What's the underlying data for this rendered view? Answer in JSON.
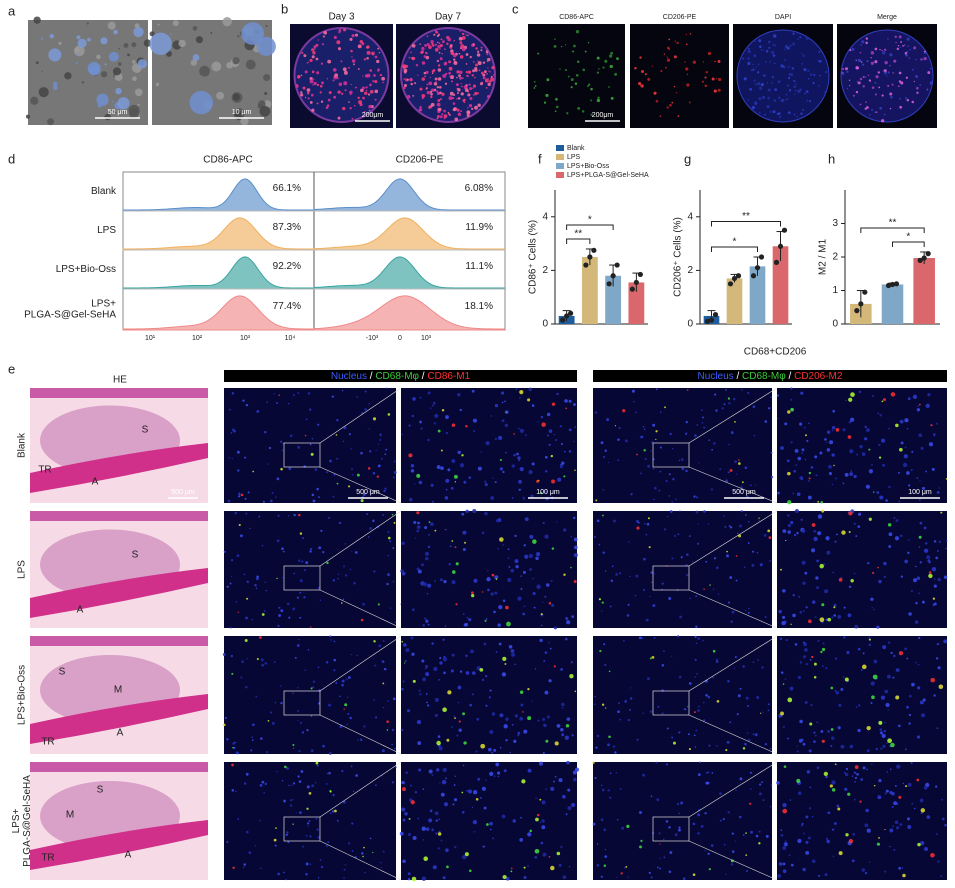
{
  "figure": {
    "a": {
      "label": "a",
      "scale_bars": [
        "50 μm",
        "10 μm"
      ]
    },
    "b": {
      "label": "b",
      "columns": [
        "Day 3",
        "Day 7"
      ],
      "scale_bar": "200μm"
    },
    "c": {
      "label": "c",
      "columns": [
        "CD86-APC",
        "CD206-PE",
        "DAPI",
        "Merge"
      ],
      "scale_bar": "200μm"
    },
    "d": {
      "label": "d",
      "columns": [
        "CD86-APC",
        "CD206-PE"
      ],
      "row_labels": [
        [
          "Blank"
        ],
        [
          "LPS"
        ],
        [
          "LPS+Bio-Oss"
        ],
        [
          "LPS+",
          "PLGA-S@Gel-SeHA"
        ]
      ],
      "cd86": [
        "66.1%",
        "87.3%",
        "92.2%",
        "77.4%"
      ],
      "cd206": [
        "6.08%",
        "11.9%",
        "11.1%",
        "18.1%"
      ],
      "cd86_axis": [
        "10¹",
        "10²",
        "10³",
        "10⁴"
      ],
      "cd206_axis": [
        "-10³",
        "0",
        "10³"
      ]
    },
    "e": {
      "label": "e",
      "he_header": "HE",
      "row_labels": [
        [
          "Blank"
        ],
        [
          "LPS"
        ],
        [
          "LPS+Bio-Oss"
        ],
        [
          "LPS+",
          "PLGA-S@Gel-SeHA"
        ]
      ],
      "he_marks": [
        [
          "S",
          "TR",
          "A"
        ],
        [
          "S",
          "A"
        ],
        [
          "S",
          "M",
          "TR",
          "A"
        ],
        [
          "S",
          "M",
          "TR",
          "A"
        ]
      ],
      "he_scale_bar": "500 μm",
      "m1_header": [
        {
          "text": "Nucleus",
          "color": "#3a5bff"
        },
        {
          "text": " / ",
          "color": "#ffffff"
        },
        {
          "text": "CD68-Mφ",
          "color": "#3ccc3c"
        },
        {
          "text": " / ",
          "color": "#ffffff"
        },
        {
          "text": "CD86-M1",
          "color": "#ff3030"
        }
      ],
      "m2_header": [
        {
          "text": "Nucleus",
          "color": "#3a5bff"
        },
        {
          "text": " / ",
          "color": "#ffffff"
        },
        {
          "text": "CD68-Mφ",
          "color": "#3ccc3c"
        },
        {
          "text": " / ",
          "color": "#ffffff"
        },
        {
          "text": "CD206-M2",
          "color": "#ff3030"
        }
      ],
      "m2_caption": "CD68+CD206",
      "scale_bars": [
        "500 μm",
        "100 μm"
      ]
    }
  },
  "chart_data": [
    {
      "type": "bar",
      "panel": "f",
      "y_label": "CD86⁺ Cells (%)",
      "categories": [
        "Blank",
        "LPS",
        "LPS+Bio-Oss",
        "LPS+PLGA-S@Gel-SeHA"
      ],
      "colors": [
        "#1f5c9e",
        "#d4b87a",
        "#7fa7c8",
        "#d9676b"
      ],
      "values": [
        0.3,
        2.5,
        1.8,
        1.55
      ],
      "errors": [
        0.2,
        0.3,
        0.4,
        0.35
      ],
      "points": [
        [
          0.15,
          0.3,
          0.4
        ],
        [
          2.2,
          2.5,
          2.75
        ],
        [
          1.5,
          1.8,
          2.2
        ],
        [
          1.3,
          1.55,
          1.85
        ]
      ],
      "ylim": [
        0,
        5
      ],
      "yticks": [
        0,
        2,
        4
      ],
      "legend": true,
      "significance": [
        {
          "label": "**",
          "between": [
            0,
            1
          ]
        },
        {
          "label": "*",
          "between": [
            0,
            2
          ]
        }
      ]
    },
    {
      "type": "bar",
      "panel": "g",
      "y_label": "CD206⁺ Cells (%)",
      "colors": [
        "#1f5c9e",
        "#d4b87a",
        "#7fa7c8",
        "#d9676b"
      ],
      "values": [
        0.3,
        1.7,
        2.15,
        2.9
      ],
      "errors": [
        0.2,
        0.15,
        0.35,
        0.55
      ],
      "points": [
        [
          0.1,
          0.15,
          0.35
        ],
        [
          1.5,
          1.7,
          1.8
        ],
        [
          1.8,
          2.1,
          2.5
        ],
        [
          2.3,
          2.9,
          3.5
        ]
      ],
      "ylim": [
        0,
        5
      ],
      "yticks": [
        0,
        2,
        4
      ],
      "legend": false,
      "significance": [
        {
          "label": "*",
          "between": [
            0,
            2
          ]
        },
        {
          "label": "**",
          "between": [
            0,
            3
          ]
        }
      ]
    },
    {
      "type": "bar",
      "panel": "h",
      "y_label": "M2 / M1",
      "colors": [
        "#d4b87a",
        "#7fa7c8",
        "#d9676b"
      ],
      "values": [
        0.6,
        1.18,
        1.97
      ],
      "errors": [
        0.4,
        0.04,
        0.18
      ],
      "points": [
        [
          0.4,
          0.6,
          0.95
        ],
        [
          1.15,
          1.18,
          1.2
        ],
        [
          1.9,
          1.97,
          2.1
        ]
      ],
      "ylim": [
        0,
        4
      ],
      "yticks": [
        0,
        1,
        2,
        3
      ],
      "legend": false,
      "significance": [
        {
          "label": "*",
          "between": [
            1,
            2
          ]
        },
        {
          "label": "**",
          "between": [
            0,
            2
          ]
        }
      ]
    }
  ]
}
